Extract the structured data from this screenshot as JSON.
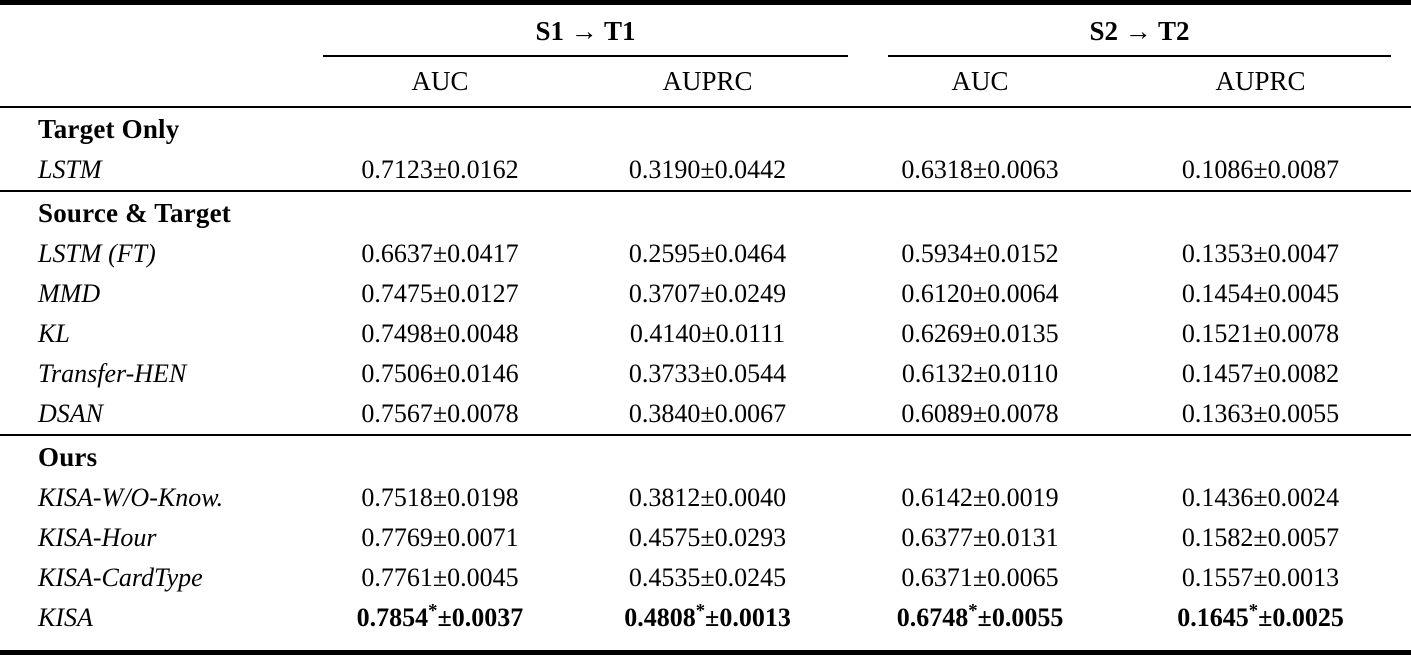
{
  "table": {
    "col_groups": [
      {
        "label": "S1 → T1"
      },
      {
        "label": "S2 → T2"
      }
    ],
    "sub_headers": [
      "AUC",
      "AUPRC",
      "AUC",
      "AUPRC"
    ],
    "sections": [
      {
        "title": "Target Only",
        "rows": [
          {
            "label": "LSTM",
            "cells": [
              "0.7123±0.0162",
              "0.3190±0.0442",
              "0.6318±0.0063",
              "0.1086±0.0087"
            ]
          }
        ]
      },
      {
        "title": "Source & Target",
        "rows": [
          {
            "label": "LSTM (FT)",
            "cells": [
              "0.6637±0.0417",
              "0.2595±0.0464",
              "0.5934±0.0152",
              "0.1353±0.0047"
            ]
          },
          {
            "label": "MMD",
            "cells": [
              "0.7475±0.0127",
              "0.3707±0.0249",
              "0.6120±0.0064",
              "0.1454±0.0045"
            ]
          },
          {
            "label": "KL",
            "cells": [
              "0.7498±0.0048",
              "0.4140±0.0111",
              "0.6269±0.0135",
              "0.1521±0.0078"
            ]
          },
          {
            "label": "Transfer-HEN",
            "cells": [
              "0.7506±0.0146",
              "0.3733±0.0544",
              "0.6132±0.0110",
              "0.1457±0.0082"
            ]
          },
          {
            "label": "DSAN",
            "cells": [
              "0.7567±0.0078",
              "0.3840±0.0067",
              "0.6089±0.0078",
              "0.1363±0.0055"
            ]
          }
        ]
      },
      {
        "title": "Ours",
        "rows": [
          {
            "label": "KISA-W/O-Know.",
            "cells": [
              "0.7518±0.0198",
              "0.3812±0.0040",
              "0.6142±0.0019",
              "0.1436±0.0024"
            ]
          },
          {
            "label": "KISA-Hour",
            "cells": [
              "0.7769±0.0071",
              "0.4575±0.0293",
              "0.6377±0.0131",
              "0.1582±0.0057"
            ]
          },
          {
            "label": "KISA-CardType",
            "cells": [
              "0.7761±0.0045",
              "0.4535±0.0245",
              "0.6371±0.0065",
              "0.1557±0.0013"
            ]
          },
          {
            "label": "KISA",
            "best": true,
            "cells_parts": [
              {
                "value": "0.7854",
                "star": "*",
                "pm": "±0.0037"
              },
              {
                "value": "0.4808",
                "star": "*",
                "pm": "±0.0013"
              },
              {
                "value": "0.6748",
                "star": "*",
                "pm": "±0.0055"
              },
              {
                "value": "0.1645",
                "star": "*",
                "pm": "±0.0025"
              }
            ]
          }
        ]
      }
    ]
  }
}
